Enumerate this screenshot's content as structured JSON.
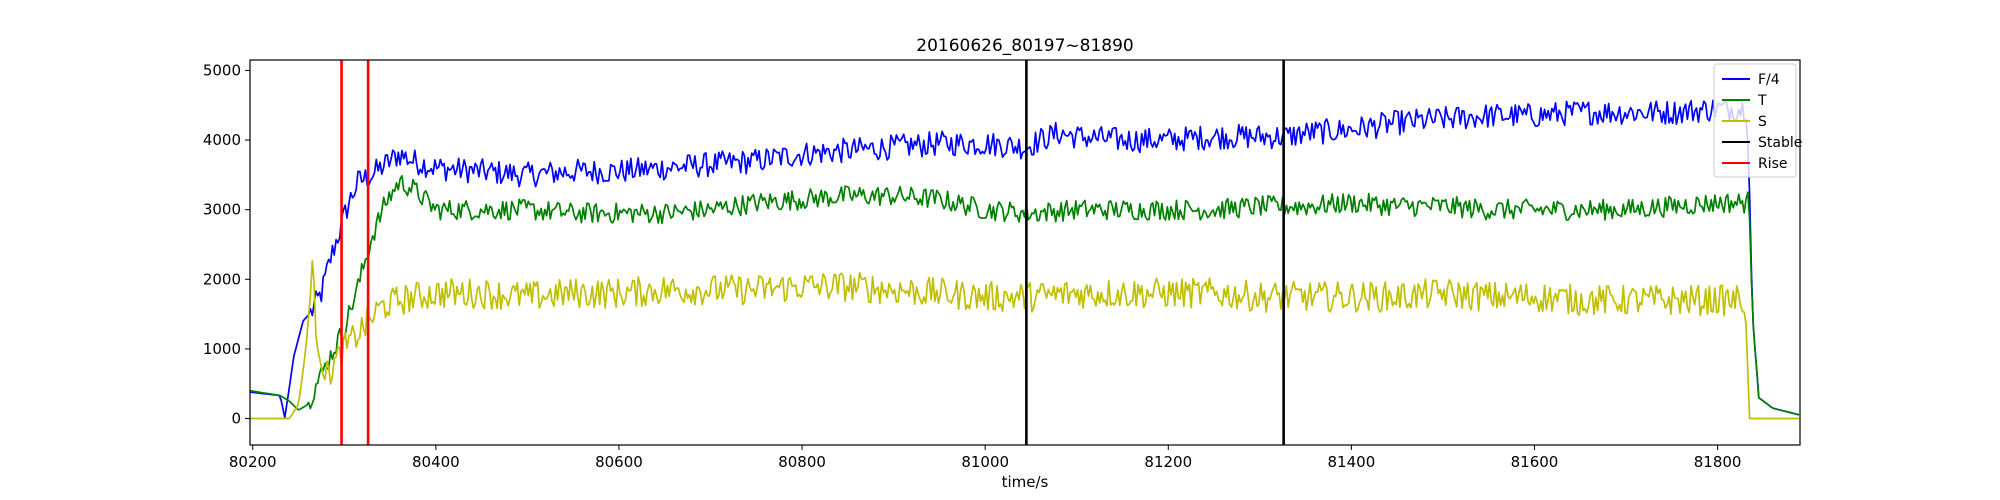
{
  "chart_data": {
    "type": "line",
    "title": "20160626_80197~81890",
    "xlabel": "time/s",
    "ylabel": "",
    "xlim": [
      80197,
      81890
    ],
    "ylim": [
      -380,
      5150
    ],
    "xticks": [
      80200,
      80400,
      80600,
      80800,
      81000,
      81200,
      81400,
      81600,
      81800
    ],
    "yticks": [
      0,
      1000,
      2000,
      3000,
      4000,
      5000
    ],
    "grid": false,
    "legend_position": "top-right",
    "series": [
      {
        "name": "F/4",
        "color": "#0000ff",
        "x": [
          80197,
          80230,
          80235,
          80245,
          80255,
          80265,
          80275,
          80285,
          80295,
          80305,
          80315,
          80330,
          80345,
          80360,
          80375,
          80400,
          80450,
          80500,
          80550,
          80600,
          80650,
          80700,
          80750,
          80800,
          80850,
          80900,
          80950,
          81000,
          81045,
          81060,
          81080,
          81100,
          81150,
          81200,
          81250,
          81300,
          81330,
          81350,
          81400,
          81450,
          81500,
          81550,
          81600,
          81650,
          81700,
          81750,
          81800,
          81830,
          81834,
          81838,
          81845,
          81860,
          81875,
          81890
        ],
        "y": [
          380,
          330,
          10,
          900,
          1400,
          1550,
          1800,
          2300,
          2700,
          3100,
          3400,
          3500,
          3650,
          3800,
          3700,
          3600,
          3550,
          3500,
          3550,
          3550,
          3600,
          3650,
          3700,
          3800,
          3850,
          3900,
          3950,
          3950,
          3900,
          4000,
          4100,
          4050,
          4000,
          4000,
          4050,
          4050,
          4050,
          4100,
          4150,
          4250,
          4300,
          4350,
          4350,
          4400,
          4400,
          4400,
          4450,
          4450,
          3800,
          1500,
          300,
          150,
          100,
          50
        ]
      },
      {
        "name": "T",
        "color": "#008000",
        "x": [
          80197,
          80230,
          80240,
          80250,
          80260,
          80270,
          80285,
          80300,
          80315,
          80330,
          80345,
          80360,
          80375,
          80400,
          80450,
          80500,
          80550,
          80600,
          80650,
          80700,
          80750,
          80800,
          80850,
          80900,
          80950,
          81000,
          81050,
          81100,
          81150,
          81200,
          81250,
          81300,
          81350,
          81400,
          81450,
          81500,
          81550,
          81600,
          81650,
          81700,
          81750,
          81800,
          81830,
          81834,
          81838,
          81845,
          81860,
          81875,
          81890
        ],
        "y": [
          400,
          330,
          250,
          120,
          200,
          500,
          900,
          1300,
          1900,
          2600,
          3100,
          3400,
          3300,
          3000,
          3000,
          3000,
          2950,
          2950,
          2950,
          3000,
          3100,
          3150,
          3200,
          3200,
          3150,
          3000,
          2950,
          3000,
          3000,
          3000,
          3000,
          3050,
          3050,
          3100,
          3050,
          3050,
          3000,
          3000,
          3000,
          3000,
          3050,
          3100,
          3100,
          3300,
          1500,
          300,
          150,
          100,
          50
        ]
      },
      {
        "name": "S",
        "color": "#bfbf00",
        "x": [
          80197,
          80240,
          80250,
          80258,
          80265,
          80270,
          80280,
          80290,
          80300,
          80320,
          80340,
          80360,
          80380,
          80400,
          80450,
          80500,
          80550,
          80600,
          80650,
          80700,
          80750,
          80800,
          80850,
          80900,
          80950,
          81000,
          81050,
          81100,
          81150,
          81200,
          81250,
          81300,
          81350,
          81400,
          81450,
          81500,
          81550,
          81600,
          81650,
          81700,
          81750,
          81800,
          81830,
          81835,
          81890
        ],
        "y": [
          0,
          0,
          200,
          1000,
          2100,
          1200,
          600,
          800,
          1000,
          1300,
          1600,
          1700,
          1750,
          1800,
          1800,
          1750,
          1800,
          1800,
          1850,
          1850,
          1850,
          1900,
          1900,
          1850,
          1800,
          1750,
          1750,
          1800,
          1800,
          1800,
          1800,
          1750,
          1750,
          1750,
          1750,
          1800,
          1750,
          1750,
          1700,
          1700,
          1700,
          1700,
          1700,
          0,
          0
        ]
      },
      {
        "name": "Stable",
        "color": "#000000",
        "type": "vline",
        "x": [
          81045,
          81326
        ]
      },
      {
        "name": "Rise",
        "color": "#ff0000",
        "type": "vline",
        "x": [
          80297,
          80326
        ]
      }
    ]
  }
}
